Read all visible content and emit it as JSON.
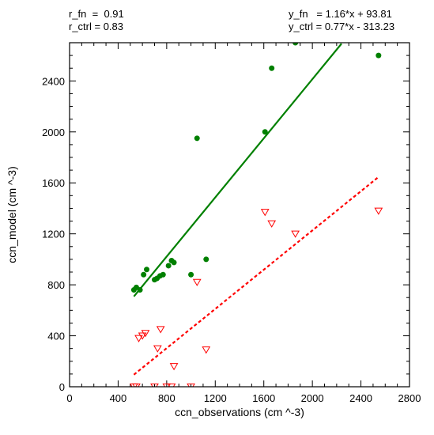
{
  "annotations": {
    "top_left_1": "r_fn  =  0.91",
    "top_left_2": "r_ctrl = 0.83",
    "top_right_1": "y_fn   = 1.16*x + 93.81",
    "top_right_2": "y_ctrl = 0.77*x - 313.23"
  },
  "chart_data": {
    "type": "scatter",
    "xlabel": "ccn_observations (cm ^-3)",
    "ylabel": "ccn_model (cm ^-3)",
    "xlim": [
      0,
      2800
    ],
    "ylim": [
      0,
      2700
    ],
    "xticks": [
      0,
      400,
      800,
      1200,
      1600,
      2000,
      2400,
      2800
    ],
    "yticks": [
      0,
      400,
      800,
      1200,
      1600,
      2000,
      2400
    ],
    "xtick_labels": [
      "0",
      "400",
      "800",
      "1200",
      "1600",
      "2000",
      "2400",
      "2800"
    ],
    "ytick_labels": [
      "0",
      "400",
      "800",
      "1200",
      "1600",
      "2000",
      "2400"
    ],
    "grid": false,
    "series": [
      {
        "name": "fn",
        "color": "#008000",
        "marker": "filled-circle",
        "x": [
          530,
          550,
          580,
          610,
          635,
          700,
          720,
          745,
          770,
          815,
          840,
          860,
          1000,
          1050,
          1125,
          1610,
          1665,
          1860,
          2545
        ],
        "y": [
          760,
          780,
          760,
          880,
          920,
          840,
          850,
          870,
          880,
          950,
          990,
          975,
          880,
          1950,
          1000,
          2000,
          2500,
          2700,
          2600
        ]
      },
      {
        "name": "ctrl",
        "color": "#ff0000",
        "marker": "hollow-triangle-down",
        "x": [
          530,
          550,
          570,
          600,
          625,
          700,
          725,
          750,
          800,
          840,
          860,
          1000,
          1050,
          1125,
          1610,
          1665,
          1860,
          2545
        ],
        "y": [
          0,
          0,
          380,
          400,
          420,
          0,
          300,
          450,
          0,
          0,
          160,
          0,
          820,
          290,
          1370,
          1280,
          1200,
          1380
        ]
      }
    ],
    "fits": [
      {
        "name": "fn",
        "slope": 1.16,
        "intercept": 93.81,
        "color": "#008000",
        "style": "solid",
        "x_range": [
          530,
          2240
        ]
      },
      {
        "name": "ctrl",
        "slope": 0.77,
        "intercept": -313.23,
        "color": "#ff0000",
        "style": "dashed",
        "x_range": [
          530,
          2545
        ]
      }
    ]
  }
}
